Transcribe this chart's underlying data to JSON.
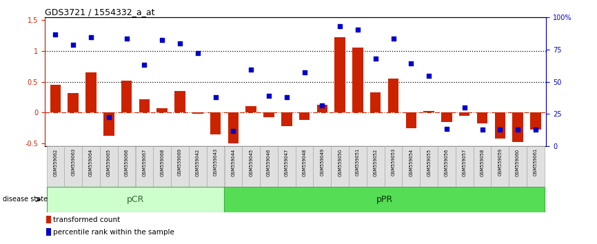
{
  "title": "GDS3721 / 1554332_a_at",
  "samples": [
    "GSM559062",
    "GSM559063",
    "GSM559064",
    "GSM559065",
    "GSM559066",
    "GSM559067",
    "GSM559068",
    "GSM559069",
    "GSM559042",
    "GSM559043",
    "GSM559044",
    "GSM559045",
    "GSM559046",
    "GSM559047",
    "GSM559048",
    "GSM559049",
    "GSM559050",
    "GSM559051",
    "GSM559052",
    "GSM559053",
    "GSM559054",
    "GSM559055",
    "GSM559056",
    "GSM559057",
    "GSM559058",
    "GSM559059",
    "GSM559060",
    "GSM559061"
  ],
  "transformed_count": [
    0.45,
    0.32,
    0.65,
    -0.38,
    0.52,
    0.21,
    0.07,
    0.35,
    -0.02,
    -0.35,
    -0.5,
    0.1,
    -0.08,
    -0.22,
    -0.12,
    0.13,
    1.22,
    1.05,
    0.33,
    0.55,
    -0.25,
    0.03,
    -0.15,
    -0.05,
    -0.18,
    -0.42,
    -0.48,
    -0.28
  ],
  "percentile_rank": [
    1.27,
    1.1,
    1.22,
    -0.07,
    1.2,
    0.77,
    1.18,
    1.12,
    0.97,
    0.25,
    -0.3,
    0.7,
    0.27,
    0.25,
    0.65,
    0.12,
    1.4,
    1.35,
    0.88,
    1.2,
    0.8,
    0.6,
    -0.27,
    0.08,
    -0.28,
    -0.28,
    -0.28,
    -0.28
  ],
  "pCR_count": 10,
  "pPR_count": 18,
  "bar_color": "#cc2200",
  "dot_color": "#0000cc",
  "background_color": "#ffffff",
  "ylim_left": [
    -0.55,
    1.55
  ],
  "ylim_right": [
    0,
    100
  ],
  "hline_y": [
    0.5,
    1.0
  ],
  "legend_items": [
    "transformed count",
    "percentile rank within the sample"
  ],
  "disease_state_label": "disease state",
  "pCR_label": "pCR",
  "pPR_label": "pPR",
  "pCR_color_light": "#ccffcc",
  "pCR_color_border": "#44aa44",
  "pPR_color": "#55dd55",
  "pPR_color_border": "#44aa44"
}
